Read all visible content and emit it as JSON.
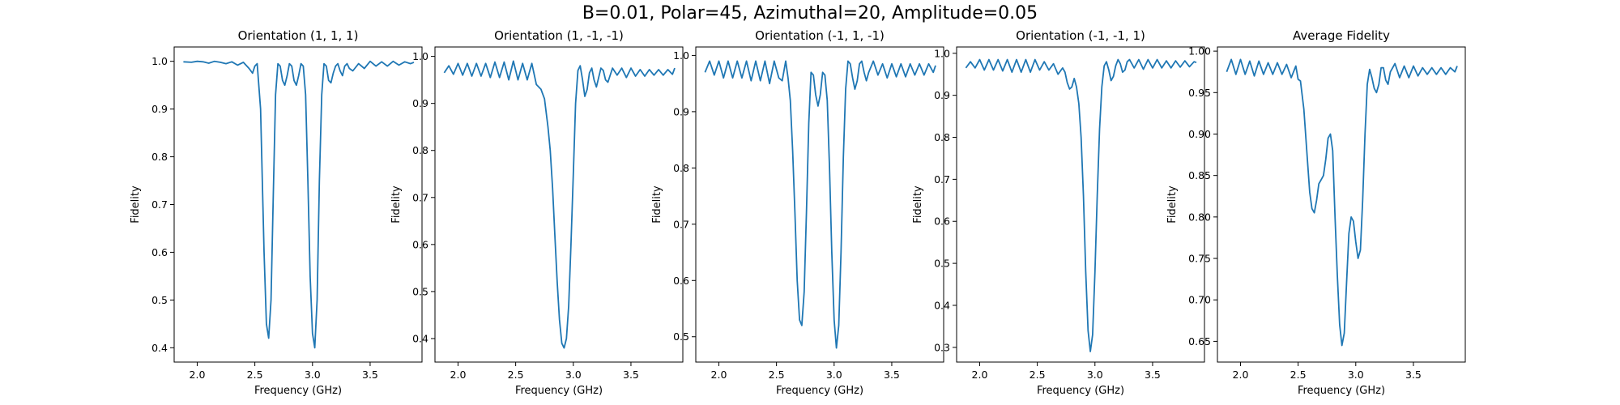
{
  "figure": {
    "suptitle": "B=0.01, Polar=45, Azimuthal=20, Amplitude=0.05",
    "line_color": "#1f77b4"
  },
  "chart_data": [
    {
      "type": "line",
      "title": "Orientation (1, 1, 1)",
      "xlabel": "Frequency (GHz)",
      "ylabel": "Fidelity",
      "xlim": [
        1.8,
        3.95
      ],
      "ylim": [
        0.37,
        1.03
      ],
      "xticks": [
        "2.0",
        "2.5",
        "3.0",
        "3.5"
      ],
      "yticks": [
        "0.4",
        "0.5",
        "0.6",
        "0.7",
        "0.8",
        "0.9",
        "1.0"
      ],
      "series": [
        {
          "x": [
            1.88,
            1.95,
            2.0,
            2.05,
            2.1,
            2.15,
            2.2,
            2.25,
            2.3,
            2.35,
            2.4,
            2.45,
            2.48,
            2.5,
            2.52,
            2.55,
            2.58,
            2.6,
            2.62,
            2.64,
            2.66,
            2.68,
            2.7,
            2.72,
            2.74,
            2.76,
            2.78,
            2.8,
            2.82,
            2.84,
            2.86,
            2.88,
            2.9,
            2.92,
            2.94,
            2.96,
            2.98,
            3.0,
            3.02,
            3.04,
            3.06,
            3.08,
            3.1,
            3.12,
            3.14,
            3.16,
            3.18,
            3.2,
            3.22,
            3.24,
            3.26,
            3.28,
            3.3,
            3.32,
            3.35,
            3.4,
            3.45,
            3.5,
            3.55,
            3.6,
            3.65,
            3.7,
            3.75,
            3.8,
            3.85,
            3.88
          ],
          "y": [
            0.999,
            0.998,
            1.0,
            0.999,
            0.996,
            1.0,
            0.998,
            0.995,
            0.999,
            0.992,
            0.998,
            0.985,
            0.975,
            0.99,
            0.995,
            0.9,
            0.6,
            0.45,
            0.42,
            0.5,
            0.72,
            0.93,
            0.995,
            0.99,
            0.96,
            0.95,
            0.97,
            0.995,
            0.99,
            0.96,
            0.95,
            0.97,
            0.995,
            0.99,
            0.93,
            0.75,
            0.55,
            0.43,
            0.4,
            0.5,
            0.75,
            0.93,
            0.995,
            0.99,
            0.96,
            0.955,
            0.975,
            0.99,
            0.995,
            0.98,
            0.97,
            0.99,
            0.995,
            0.985,
            0.98,
            0.995,
            0.985,
            1.0,
            0.99,
            0.999,
            0.99,
            1.0,
            0.992,
            0.999,
            0.995,
            0.998
          ]
        }
      ]
    },
    {
      "type": "line",
      "title": "Orientation (1, -1, -1)",
      "xlabel": "Frequency (GHz)",
      "ylabel": "Fidelity",
      "xlim": [
        1.8,
        3.95
      ],
      "ylim": [
        0.35,
        1.02
      ],
      "xticks": [
        "2.0",
        "2.5",
        "3.0",
        "3.5"
      ],
      "yticks": [
        "0.4",
        "0.5",
        "0.6",
        "0.7",
        "0.8",
        "0.9",
        "1.0"
      ],
      "series": [
        {
          "x": [
            1.88,
            1.92,
            1.96,
            2.0,
            2.04,
            2.08,
            2.12,
            2.16,
            2.2,
            2.24,
            2.28,
            2.32,
            2.36,
            2.4,
            2.44,
            2.48,
            2.52,
            2.56,
            2.6,
            2.64,
            2.68,
            2.72,
            2.75,
            2.78,
            2.8,
            2.82,
            2.84,
            2.86,
            2.88,
            2.9,
            2.92,
            2.94,
            2.96,
            2.98,
            3.0,
            3.02,
            3.04,
            3.06,
            3.08,
            3.1,
            3.12,
            3.14,
            3.16,
            3.18,
            3.2,
            3.22,
            3.24,
            3.26,
            3.28,
            3.3,
            3.34,
            3.38,
            3.42,
            3.46,
            3.5,
            3.54,
            3.58,
            3.62,
            3.66,
            3.7,
            3.74,
            3.78,
            3.82,
            3.86,
            3.88
          ],
          "y": [
            0.965,
            0.98,
            0.962,
            0.985,
            0.96,
            0.985,
            0.958,
            0.985,
            0.958,
            0.985,
            0.955,
            0.988,
            0.955,
            0.988,
            0.95,
            0.99,
            0.95,
            0.985,
            0.95,
            0.985,
            0.94,
            0.93,
            0.91,
            0.85,
            0.8,
            0.72,
            0.62,
            0.52,
            0.44,
            0.39,
            0.38,
            0.4,
            0.47,
            0.6,
            0.75,
            0.9,
            0.97,
            0.98,
            0.95,
            0.915,
            0.93,
            0.965,
            0.975,
            0.95,
            0.935,
            0.955,
            0.975,
            0.97,
            0.95,
            0.945,
            0.975,
            0.96,
            0.975,
            0.955,
            0.975,
            0.958,
            0.972,
            0.958,
            0.972,
            0.96,
            0.972,
            0.96,
            0.972,
            0.962,
            0.975
          ]
        }
      ]
    },
    {
      "type": "line",
      "title": "Orientation (-1, 1, -1)",
      "xlabel": "Frequency (GHz)",
      "ylabel": "Fidelity",
      "xlim": [
        1.8,
        3.95
      ],
      "ylim": [
        0.455,
        1.015
      ],
      "xticks": [
        "2.0",
        "2.5",
        "3.0",
        "3.5"
      ],
      "yticks": [
        "0.5",
        "0.6",
        "0.7",
        "0.8",
        "0.9",
        "1.0"
      ],
      "series": [
        {
          "x": [
            1.88,
            1.92,
            1.96,
            2.0,
            2.04,
            2.08,
            2.12,
            2.16,
            2.2,
            2.24,
            2.28,
            2.32,
            2.36,
            2.4,
            2.44,
            2.48,
            2.52,
            2.55,
            2.58,
            2.6,
            2.62,
            2.64,
            2.66,
            2.68,
            2.7,
            2.72,
            2.74,
            2.76,
            2.78,
            2.8,
            2.82,
            2.84,
            2.86,
            2.88,
            2.9,
            2.92,
            2.94,
            2.96,
            2.98,
            3.0,
            3.02,
            3.04,
            3.06,
            3.08,
            3.1,
            3.12,
            3.14,
            3.16,
            3.18,
            3.2,
            3.22,
            3.24,
            3.26,
            3.28,
            3.3,
            3.34,
            3.38,
            3.42,
            3.46,
            3.5,
            3.54,
            3.58,
            3.62,
            3.66,
            3.7,
            3.74,
            3.78,
            3.82,
            3.86,
            3.88
          ],
          "y": [
            0.97,
            0.99,
            0.965,
            0.99,
            0.96,
            0.99,
            0.96,
            0.99,
            0.96,
            0.99,
            0.955,
            0.99,
            0.955,
            0.99,
            0.95,
            0.99,
            0.96,
            0.955,
            0.99,
            0.96,
            0.92,
            0.83,
            0.72,
            0.6,
            0.53,
            0.52,
            0.58,
            0.72,
            0.88,
            0.97,
            0.965,
            0.93,
            0.91,
            0.93,
            0.97,
            0.965,
            0.92,
            0.8,
            0.65,
            0.53,
            0.48,
            0.52,
            0.65,
            0.82,
            0.94,
            0.99,
            0.985,
            0.96,
            0.94,
            0.955,
            0.985,
            0.99,
            0.97,
            0.955,
            0.97,
            0.99,
            0.965,
            0.985,
            0.96,
            0.985,
            0.962,
            0.985,
            0.962,
            0.985,
            0.965,
            0.985,
            0.965,
            0.985,
            0.97,
            0.982
          ]
        }
      ]
    },
    {
      "type": "line",
      "title": "Orientation (-1, -1, 1)",
      "xlabel": "Frequency (GHz)",
      "ylabel": "Fidelity",
      "xlim": [
        1.8,
        3.95
      ],
      "ylim": [
        0.265,
        1.015
      ],
      "xticks": [
        "2.0",
        "2.5",
        "3.0",
        "3.5"
      ],
      "yticks": [
        "0.3",
        "0.4",
        "0.5",
        "0.6",
        "0.7",
        "0.8",
        "0.9",
        "1.0"
      ],
      "series": [
        {
          "x": [
            1.88,
            1.92,
            1.96,
            2.0,
            2.04,
            2.08,
            2.12,
            2.16,
            2.2,
            2.24,
            2.28,
            2.32,
            2.36,
            2.4,
            2.44,
            2.48,
            2.52,
            2.56,
            2.6,
            2.64,
            2.68,
            2.72,
            2.74,
            2.76,
            2.78,
            2.8,
            2.82,
            2.84,
            2.86,
            2.88,
            2.9,
            2.92,
            2.94,
            2.96,
            2.98,
            3.0,
            3.02,
            3.04,
            3.06,
            3.08,
            3.1,
            3.12,
            3.14,
            3.16,
            3.18,
            3.2,
            3.22,
            3.24,
            3.26,
            3.28,
            3.3,
            3.34,
            3.38,
            3.42,
            3.46,
            3.5,
            3.54,
            3.58,
            3.62,
            3.66,
            3.7,
            3.74,
            3.78,
            3.82,
            3.86,
            3.88
          ],
          "y": [
            0.965,
            0.98,
            0.965,
            0.985,
            0.96,
            0.985,
            0.96,
            0.985,
            0.958,
            0.985,
            0.955,
            0.985,
            0.955,
            0.985,
            0.955,
            0.985,
            0.96,
            0.98,
            0.96,
            0.975,
            0.95,
            0.965,
            0.955,
            0.93,
            0.915,
            0.92,
            0.94,
            0.92,
            0.88,
            0.8,
            0.66,
            0.48,
            0.34,
            0.29,
            0.33,
            0.48,
            0.66,
            0.82,
            0.92,
            0.97,
            0.98,
            0.96,
            0.935,
            0.945,
            0.97,
            0.985,
            0.975,
            0.955,
            0.96,
            0.98,
            0.985,
            0.965,
            0.985,
            0.962,
            0.985,
            0.965,
            0.985,
            0.965,
            0.982,
            0.965,
            0.982,
            0.967,
            0.982,
            0.968,
            0.98,
            0.978
          ]
        }
      ]
    },
    {
      "type": "line",
      "title": "Average Fidelity",
      "xlabel": "Frequency (GHz)",
      "ylabel": "Fidelity",
      "xlim": [
        1.8,
        3.95
      ],
      "ylim": [
        0.625,
        1.005
      ],
      "xticks": [
        "2.0",
        "2.5",
        "3.0",
        "3.5"
      ],
      "yticks": [
        "0.65",
        "0.70",
        "0.75",
        "0.80",
        "0.85",
        "0.90",
        "0.95",
        "1.00"
      ],
      "series": [
        {
          "x": [
            1.88,
            1.92,
            1.96,
            2.0,
            2.04,
            2.08,
            2.12,
            2.16,
            2.2,
            2.24,
            2.28,
            2.32,
            2.36,
            2.4,
            2.44,
            2.48,
            2.5,
            2.52,
            2.55,
            2.58,
            2.6,
            2.62,
            2.64,
            2.66,
            2.68,
            2.7,
            2.72,
            2.74,
            2.76,
            2.78,
            2.8,
            2.82,
            2.84,
            2.86,
            2.88,
            2.9,
            2.92,
            2.94,
            2.96,
            2.98,
            3.0,
            3.02,
            3.04,
            3.06,
            3.08,
            3.1,
            3.12,
            3.14,
            3.16,
            3.18,
            3.2,
            3.22,
            3.24,
            3.26,
            3.28,
            3.3,
            3.34,
            3.38,
            3.42,
            3.46,
            3.5,
            3.54,
            3.58,
            3.62,
            3.66,
            3.7,
            3.74,
            3.78,
            3.82,
            3.86,
            3.88
          ],
          "y": [
            0.975,
            0.99,
            0.972,
            0.99,
            0.972,
            0.988,
            0.97,
            0.988,
            0.972,
            0.986,
            0.972,
            0.986,
            0.972,
            0.984,
            0.968,
            0.982,
            0.966,
            0.964,
            0.93,
            0.87,
            0.83,
            0.81,
            0.805,
            0.82,
            0.84,
            0.845,
            0.85,
            0.87,
            0.895,
            0.9,
            0.88,
            0.8,
            0.73,
            0.67,
            0.645,
            0.66,
            0.72,
            0.78,
            0.8,
            0.795,
            0.77,
            0.75,
            0.76,
            0.82,
            0.9,
            0.96,
            0.978,
            0.968,
            0.955,
            0.95,
            0.96,
            0.98,
            0.98,
            0.965,
            0.96,
            0.975,
            0.985,
            0.968,
            0.982,
            0.968,
            0.982,
            0.97,
            0.98,
            0.972,
            0.98,
            0.972,
            0.98,
            0.972,
            0.98,
            0.975,
            0.982
          ]
        }
      ]
    }
  ]
}
